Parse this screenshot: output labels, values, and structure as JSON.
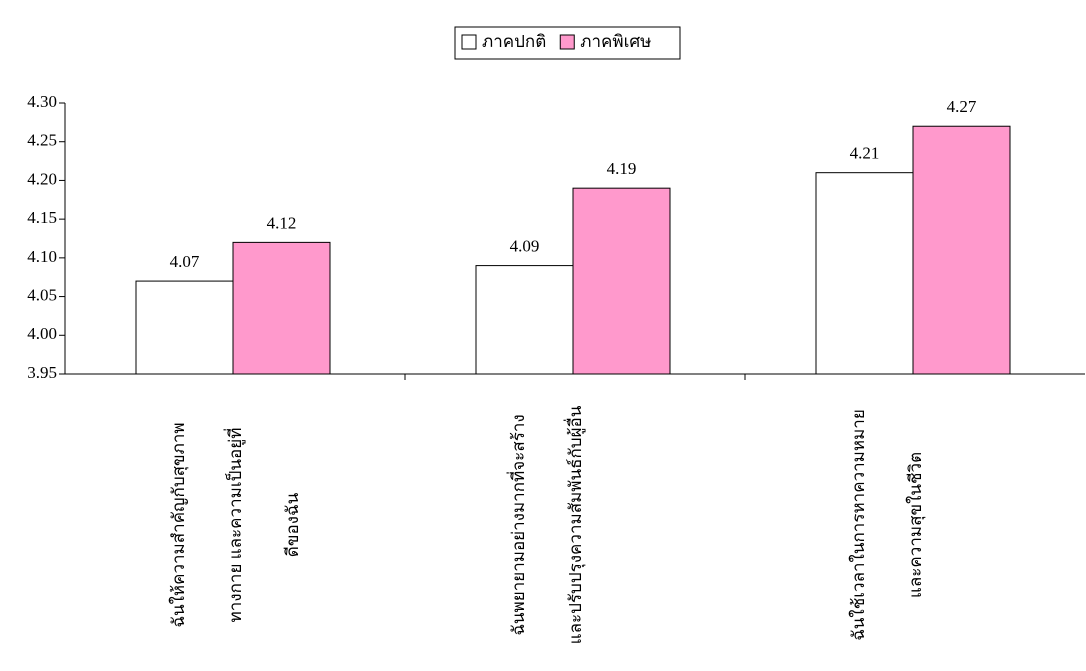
{
  "chart_data": {
    "type": "bar",
    "categories": [
      [
        "ฉันให้ความสำคัญกับสุขภาพ",
        "ทางกาย และความเป็นอยู่ที่",
        "ดีของฉัน"
      ],
      [
        "ฉันพยายามอย่างมากที่จะสร้าง",
        "และปรับปรุงความสัมพันธ์กับผู้อื่น"
      ],
      [
        "ฉันใช้เวลาในการหาความหมาย",
        "และความสุขในชีวิต"
      ]
    ],
    "series": [
      {
        "name": "ภาคปกติ",
        "color": "#ffffff",
        "values": [
          4.07,
          4.09,
          4.21
        ]
      },
      {
        "name": "ภาคพิเศษ",
        "color": "#ff99cc",
        "values": [
          4.12,
          4.19,
          4.27
        ]
      }
    ],
    "ylim": [
      3.95,
      4.3
    ],
    "yticks": [
      3.95,
      {
        "value": 4.0,
        "label": "4.00"
      },
      4.05,
      {
        "value": 4.1,
        "label": "4.10"
      },
      4.15,
      {
        "value": 4.2,
        "label": "4.20"
      },
      4.25,
      {
        "value": 4.3,
        "label": "4.30"
      }
    ],
    "legend": "top"
  }
}
